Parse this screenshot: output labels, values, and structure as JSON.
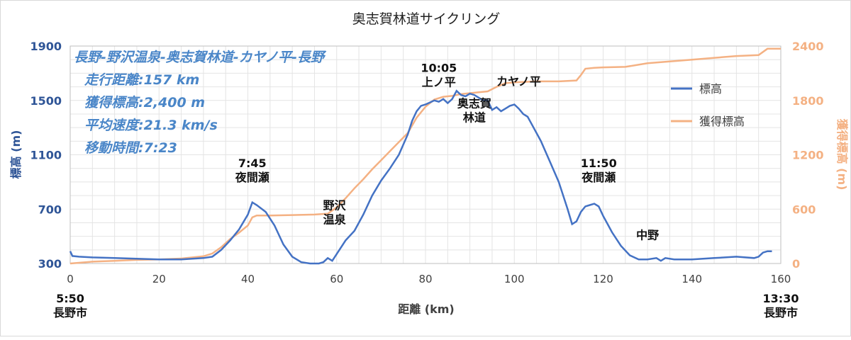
{
  "chart_data": {
    "type": "line",
    "title": "奥志賀林道サイクリング",
    "xlabel": "距離 (km)",
    "ylabel_left": "標高 (m)",
    "ylabel_right": "獲得標高 (m)",
    "xlim": [
      0,
      160
    ],
    "ylim_left": [
      300,
      1900
    ],
    "ylim_right": [
      0,
      2400
    ],
    "x_ticks": [
      0,
      20,
      40,
      60,
      80,
      100,
      120,
      140,
      160
    ],
    "y_ticks_left": [
      300,
      700,
      1100,
      1500,
      1900
    ],
    "y_ticks_right": [
      0,
      600,
      1200,
      1800,
      2400
    ],
    "grid": true,
    "legend_position": "right",
    "colors": {
      "elevation": "#4472c4",
      "gain": "#f4b183",
      "axis_left": "#2f5597",
      "axis_right": "#f4b183",
      "info": "#4a86c8"
    },
    "series": [
      {
        "name": "標高",
        "axis": "left",
        "x": [
          0,
          0.5,
          2,
          5,
          10,
          15,
          20,
          25,
          30,
          32,
          34,
          36,
          38,
          40,
          41,
          42,
          44,
          46,
          48,
          50,
          52,
          54,
          56,
          57,
          58,
          59,
          60,
          62,
          64,
          66,
          68,
          70,
          72,
          74,
          76,
          77,
          78,
          79,
          80,
          82,
          83,
          84,
          85,
          86,
          87,
          88,
          89,
          90,
          91,
          92,
          93,
          94,
          95,
          96,
          97,
          98,
          99,
          100,
          101,
          102,
          103,
          104,
          106,
          108,
          110,
          112,
          113,
          114,
          115,
          116,
          117,
          118,
          119,
          120,
          121,
          122,
          124,
          126,
          128,
          130,
          132,
          133,
          134,
          136,
          138,
          140,
          145,
          150,
          154,
          155,
          156,
          157,
          158
        ],
        "values": [
          390,
          355,
          350,
          345,
          340,
          335,
          330,
          330,
          340,
          350,
          400,
          470,
          550,
          660,
          750,
          730,
          680,
          580,
          440,
          350,
          310,
          300,
          300,
          310,
          340,
          320,
          370,
          470,
          540,
          660,
          800,
          910,
          1000,
          1100,
          1250,
          1350,
          1420,
          1460,
          1470,
          1500,
          1490,
          1510,
          1480,
          1510,
          1570,
          1540,
          1530,
          1550,
          1540,
          1520,
          1500,
          1500,
          1430,
          1450,
          1420,
          1440,
          1460,
          1470,
          1440,
          1400,
          1380,
          1320,
          1200,
          1050,
          900,
          700,
          590,
          610,
          680,
          720,
          730,
          740,
          720,
          650,
          590,
          530,
          430,
          360,
          330,
          330,
          340,
          320,
          340,
          330,
          330,
          330,
          340,
          350,
          340,
          350,
          380,
          390,
          390
        ]
      },
      {
        "name": "獲得標高",
        "axis": "right",
        "x": [
          0,
          5,
          10,
          15,
          20,
          25,
          30,
          32,
          34,
          36,
          38,
          40,
          41,
          42,
          45,
          50,
          55,
          58,
          60,
          62,
          64,
          66,
          68,
          70,
          72,
          74,
          76,
          78,
          80,
          82,
          84,
          86,
          88,
          90,
          92,
          94,
          96,
          98,
          100,
          105,
          110,
          114,
          115,
          116,
          118,
          120,
          125,
          130,
          140,
          150,
          155,
          157,
          160
        ],
        "values": [
          0,
          20,
          30,
          40,
          45,
          55,
          80,
          110,
          180,
          270,
          340,
          420,
          510,
          530,
          530,
          535,
          540,
          550,
          620,
          720,
          830,
          930,
          1040,
          1140,
          1240,
          1340,
          1440,
          1610,
          1730,
          1810,
          1840,
          1850,
          1870,
          1880,
          1890,
          1900,
          1950,
          1990,
          2000,
          2010,
          2010,
          2020,
          2080,
          2150,
          2160,
          2165,
          2170,
          2210,
          2250,
          2290,
          2300,
          2370,
          2370
        ]
      }
    ],
    "info_lines": [
      "長野-野沢温泉-奥志賀林道-カヤノ平-長野",
      "走行距離:157 km",
      "獲得標高:2,400 m",
      "平均速度:21.3 km/s",
      "移動時間:7:23"
    ],
    "annotations": [
      {
        "x": 41,
        "y": 1010,
        "lines": [
          "7:45",
          "夜間瀬"
        ]
      },
      {
        "x": 59.5,
        "y": 700,
        "lines": [
          "野沢",
          "温泉"
        ]
      },
      {
        "x": 83,
        "y": 1710,
        "lines": [
          "10:05",
          "上ノ平"
        ]
      },
      {
        "x": 91,
        "y": 1450,
        "lines": [
          "奥志賀",
          "林道"
        ]
      },
      {
        "x": 101,
        "y": 1610,
        "lines": [
          "カヤノ平"
        ]
      },
      {
        "x": 119,
        "y": 1010,
        "lines": [
          "11:50",
          "夜間瀬"
        ]
      },
      {
        "x": 130,
        "y": 480,
        "lines": [
          "中野"
        ]
      }
    ],
    "bottom_labels": [
      {
        "x": 0,
        "lines": [
          "5:50",
          "長野市"
        ]
      },
      {
        "x": 160,
        "lines": [
          "13:30",
          "長野市"
        ]
      }
    ]
  }
}
